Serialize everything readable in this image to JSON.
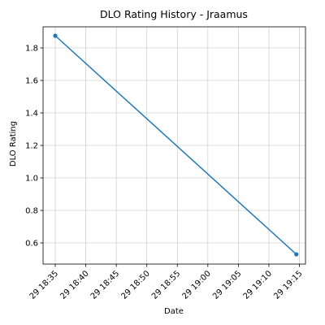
{
  "chart_data": {
    "type": "line",
    "title": "DLO Rating History - Jraamus",
    "xlabel": "Date",
    "ylabel": "DLO Rating",
    "x_ticks": [
      "29 18:35",
      "29 18:40",
      "29 18:45",
      "29 18:50",
      "29 18:55",
      "29 19:00",
      "29 19:05",
      "29 19:10",
      "29 19:15"
    ],
    "y_ticks": [
      "0.6",
      "0.8",
      "1.0",
      "1.2",
      "1.4",
      "1.6",
      "1.8"
    ],
    "xlim": [
      "29 18:33",
      "29 19:16"
    ],
    "ylim": [
      0.47,
      1.93
    ],
    "grid": true,
    "series": [
      {
        "color": "#1f77b4",
        "marker": "circle",
        "x": [
          "29 18:35",
          "29 19:14.5"
        ],
        "y": [
          1.875,
          0.53
        ]
      }
    ]
  }
}
